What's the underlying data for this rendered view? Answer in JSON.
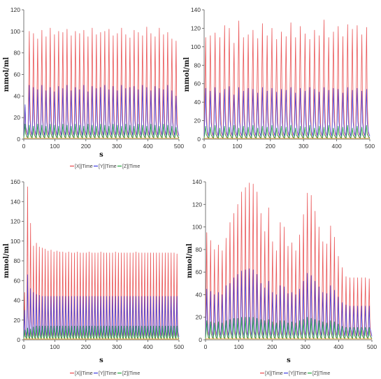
{
  "colors": {
    "X": "#e8484a",
    "Y": "#3b3be0",
    "Z": "#1fa53a",
    "extra": "#e8a23a"
  },
  "chart_data": [
    {
      "type": "line",
      "xlabel": "s",
      "ylabel": "mmol/ml",
      "xlim": [
        0,
        500
      ],
      "ylim": [
        0,
        120
      ],
      "xticks": [
        0,
        100,
        200,
        300,
        400,
        500
      ],
      "yticks": [
        0,
        20,
        40,
        60,
        80,
        100,
        120
      ],
      "legend": [
        "[X]|Time",
        "[Y]|Time",
        "[Z]|Time"
      ],
      "legend_position": "bottom",
      "series": [
        {
          "name": "[X]|Time",
          "values": [
            30,
            100,
            98,
            93,
            101,
            95,
            103,
            97,
            100,
            99,
            102,
            96,
            100,
            98,
            101,
            95,
            103,
            97,
            99,
            100,
            102,
            96,
            98,
            103,
            97,
            94,
            101,
            99,
            96,
            104,
            98,
            95,
            103,
            97,
            99,
            93,
            91
          ]
        },
        {
          "name": "[Y]|Time",
          "values": [
            32,
            50,
            48,
            46,
            50,
            45,
            48,
            44,
            49,
            47,
            50,
            45,
            48,
            46,
            50,
            44,
            49,
            47,
            48,
            50,
            46,
            49,
            45,
            50,
            47,
            48,
            49,
            46,
            50,
            48,
            45,
            49,
            47,
            46,
            50,
            45,
            40
          ]
        },
        {
          "name": "[Z]|Time",
          "values": [
            14,
            13,
            12,
            14,
            13,
            12,
            14,
            13,
            12,
            14,
            13,
            12,
            14,
            13,
            12,
            14,
            13,
            12,
            14,
            13,
            12,
            14,
            13,
            12,
            14,
            13,
            12,
            14,
            13,
            12,
            14,
            13,
            12,
            14,
            13,
            12,
            11
          ]
        }
      ]
    },
    {
      "type": "line",
      "xlabel": "",
      "ylabel": "mmol/ml",
      "xlim": [
        0,
        500
      ],
      "ylim": [
        0,
        140
      ],
      "xticks": [
        0,
        100,
        200,
        300,
        400,
        500
      ],
      "yticks": [
        0,
        20,
        40,
        60,
        80,
        100,
        120,
        140
      ],
      "legend": [],
      "legend_position": "none",
      "series": [
        {
          "name": "[X]|Time",
          "values": [
            110,
            112,
            115,
            110,
            123,
            120,
            104,
            128,
            110,
            113,
            118,
            109,
            125,
            112,
            120,
            108,
            116,
            111,
            126,
            110,
            122,
            114,
            108,
            118,
            112,
            129,
            110,
            116,
            122,
            111,
            124,
            119,
            123,
            113,
            121
          ]
        },
        {
          "name": "[Y]|Time",
          "values": [
            55,
            52,
            56,
            50,
            54,
            57,
            48,
            56,
            52,
            55,
            54,
            50,
            56,
            52,
            55,
            51,
            54,
            53,
            56,
            50,
            55,
            52,
            56,
            54,
            51,
            56,
            53,
            55,
            54,
            50,
            56,
            53,
            55,
            52,
            54
          ]
        },
        {
          "name": "[Z]|Time",
          "values": [
            14,
            13,
            15,
            12,
            14,
            13,
            15,
            12,
            14,
            13,
            15,
            12,
            14,
            13,
            15,
            12,
            14,
            13,
            15,
            12,
            14,
            13,
            15,
            12,
            14,
            13,
            15,
            12,
            14,
            13,
            15,
            12,
            14,
            13,
            15
          ]
        }
      ]
    },
    {
      "type": "line",
      "xlabel": "s",
      "ylabel": "mmol/ml",
      "xlim": [
        0,
        500
      ],
      "ylim": [
        0,
        160
      ],
      "xticks": [
        0,
        100,
        200,
        300,
        400,
        500
      ],
      "yticks": [
        0,
        20,
        40,
        60,
        80,
        100,
        120,
        140,
        160
      ],
      "legend": [
        "[X]|Time",
        "[Y]|Time",
        "[Z]|Time"
      ],
      "legend_position": "bottom",
      "series": [
        {
          "name": "[X]|Time",
          "values": [
            48,
            155,
            118,
            95,
            98,
            94,
            93,
            92,
            90,
            91,
            89,
            90,
            89,
            89,
            88,
            89,
            88,
            88,
            89,
            88,
            88,
            88,
            89,
            88,
            88,
            88,
            89,
            88,
            88,
            88,
            88,
            89,
            88,
            88,
            88,
            88,
            88,
            88,
            89,
            88,
            88,
            88,
            88,
            88,
            88,
            88,
            88,
            88,
            88,
            88,
            88,
            88,
            87
          ]
        },
        {
          "name": "[Y]|Time",
          "values": [
            30,
            66,
            52,
            48,
            46,
            45,
            44,
            44,
            44,
            44,
            44,
            44,
            44,
            44,
            44,
            44,
            44,
            44,
            44,
            44,
            44,
            44,
            44,
            44,
            44,
            44,
            44,
            44,
            44,
            44,
            44,
            44,
            44,
            44,
            44,
            44,
            44,
            44,
            44,
            44,
            44,
            44,
            44,
            44,
            44,
            44,
            44,
            44,
            44,
            44,
            44,
            44,
            44
          ]
        },
        {
          "name": "[Z]|Time",
          "values": [
            10,
            12,
            11,
            13,
            14,
            14,
            14,
            14,
            14,
            14,
            14,
            14,
            14,
            14,
            14,
            14,
            14,
            14,
            14,
            14,
            14,
            14,
            14,
            14,
            14,
            14,
            14,
            14,
            14,
            14,
            14,
            14,
            14,
            14,
            14,
            14,
            14,
            14,
            14,
            14,
            14,
            14,
            14,
            14,
            14,
            14,
            14,
            14,
            14,
            14,
            14,
            14,
            14
          ]
        }
      ]
    },
    {
      "type": "line",
      "xlabel": "s",
      "ylabel": "mmol/ml",
      "xlim": [
        0,
        500
      ],
      "ylim": [
        0,
        140
      ],
      "xticks": [
        0,
        100,
        200,
        300,
        400,
        500
      ],
      "yticks": [
        0,
        20,
        40,
        60,
        80,
        100,
        120,
        140
      ],
      "legend": [
        "[X]|Time",
        "[Y]|Time",
        "[Z]|Time"
      ],
      "legend_position": "bottom",
      "series": [
        {
          "name": "[X]|Time",
          "values": [
            95,
            88,
            80,
            84,
            79,
            90,
            104,
            112,
            120,
            131,
            135,
            139,
            138,
            131,
            112,
            96,
            117,
            87,
            79,
            104,
            100,
            83,
            86,
            79,
            93,
            111,
            130,
            128,
            114,
            100,
            87,
            85,
            101,
            91,
            74,
            64,
            56,
            55,
            55,
            55,
            55,
            55,
            54
          ]
        },
        {
          "name": "[Y]|Time",
          "values": [
            45,
            43,
            40,
            42,
            40,
            48,
            50,
            55,
            58,
            61,
            62,
            63,
            62,
            58,
            50,
            46,
            52,
            42,
            40,
            48,
            47,
            41,
            42,
            40,
            45,
            52,
            59,
            57,
            52,
            47,
            42,
            41,
            48,
            44,
            38,
            33,
            31,
            30,
            30,
            30,
            30,
            30,
            30
          ]
        },
        {
          "name": "[Z]|Time",
          "values": [
            17,
            16,
            15,
            16,
            15,
            17,
            18,
            19,
            19,
            20,
            20,
            20,
            20,
            19,
            18,
            17,
            18,
            16,
            15,
            17,
            17,
            15,
            16,
            15,
            17,
            18,
            20,
            19,
            18,
            17,
            16,
            15,
            17,
            16,
            14,
            12,
            11,
            11,
            11,
            11,
            11,
            11,
            11
          ]
        }
      ]
    }
  ]
}
